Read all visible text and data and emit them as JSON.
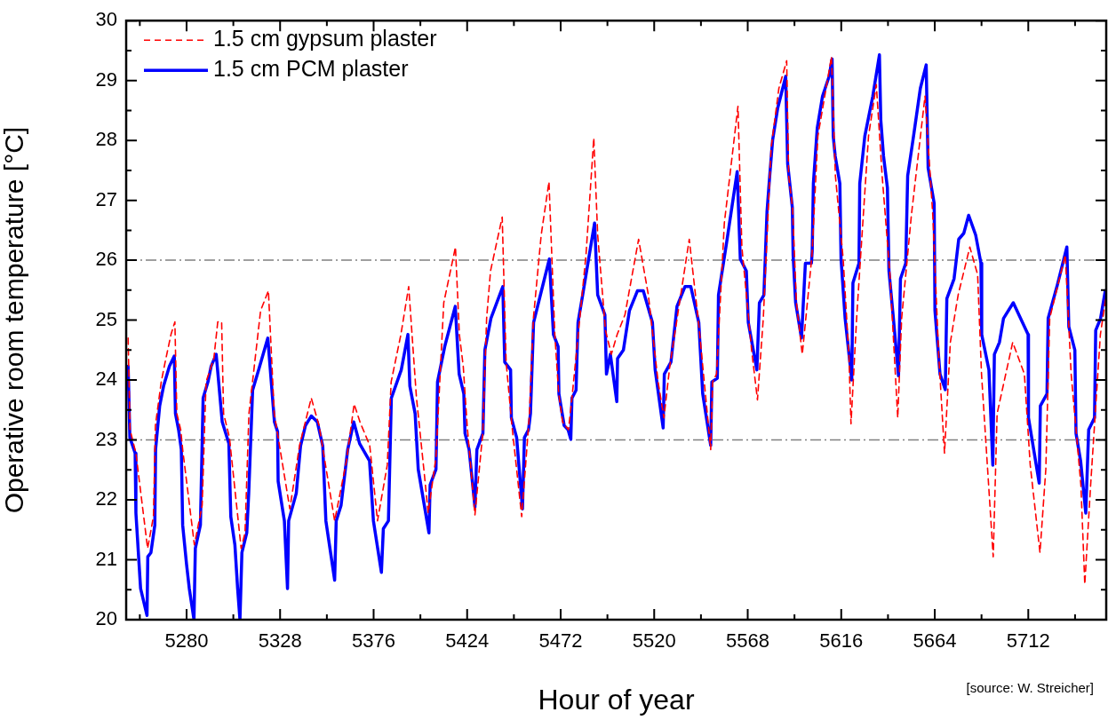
{
  "chart_data": {
    "type": "line",
    "xlabel": "Hour of year",
    "ylabel": "Operative room temperature [°C]",
    "xlim": [
      5249,
      5752
    ],
    "ylim": [
      20,
      30
    ],
    "xticks": [
      {
        "value": 5256,
        "label": null
      },
      5280,
      {
        "value": 5304,
        "label": null
      },
      5328,
      {
        "value": 5352,
        "label": null
      },
      5376,
      {
        "value": 5400,
        "label": null
      },
      5424,
      {
        "value": 5448,
        "label": null
      },
      5472,
      {
        "value": 5496,
        "label": null
      },
      5520,
      {
        "value": 5544,
        "label": null
      },
      5568,
      {
        "value": 5592,
        "label": null
      },
      5616,
      {
        "value": 5640,
        "label": null
      },
      5664,
      {
        "value": 5688,
        "label": null
      },
      5712,
      {
        "value": 5736,
        "label": null
      }
    ],
    "yticks": [
      20,
      {
        "value": 20.5,
        "label": null
      },
      21,
      {
        "value": 21.5,
        "label": null
      },
      22,
      {
        "value": 22.5,
        "label": null
      },
      23,
      {
        "value": 23.5,
        "label": null
      },
      24,
      {
        "value": 24.5,
        "label": null
      },
      25,
      {
        "value": 25.5,
        "label": null
      },
      26,
      {
        "value": 26.5,
        "label": null
      },
      27,
      {
        "value": 27.5,
        "label": null
      },
      28,
      {
        "value": 28.5,
        "label": null
      },
      29,
      {
        "value": 29.5,
        "label": null
      },
      30
    ],
    "grid": false,
    "legend": "top left",
    "marker": "none",
    "ref_lines": [
      {
        "axis": "y",
        "value": 26,
        "color": "#808080",
        "line_style": "dashed"
      },
      {
        "axis": "y",
        "value": 23,
        "color": "#808080",
        "line_style": "dashed"
      }
    ],
    "annotations": [
      "[source: W. Streicher]"
    ],
    "series": [
      {
        "name": "1.5 cm gypsum plaster",
        "color": "#ff0000",
        "line_style": "dashed",
        "x": [
          5250,
          5251,
          5254,
          5260,
          5263,
          5264,
          5267,
          5269,
          5272,
          5274,
          5275,
          5277,
          5278,
          5284,
          5288,
          5290,
          5294,
          5296,
          5298,
          5299,
          5302,
          5308,
          5310,
          5312,
          5318,
          5322,
          5325,
          5333,
          5338,
          5344,
          5348,
          5356,
          5362,
          5366,
          5369,
          5374,
          5378,
          5383,
          5385,
          5390,
          5394,
          5398,
          5402,
          5404,
          5408,
          5412,
          5418,
          5420,
          5422,
          5424,
          5428,
          5432,
          5434,
          5436,
          5442,
          5444,
          5447,
          5452,
          5456,
          5458,
          5462,
          5466,
          5469,
          5471,
          5473,
          5476,
          5478,
          5481,
          5485,
          5489,
          5491,
          5495,
          5498,
          5501,
          5505,
          5512,
          5517,
          5522,
          5525,
          5528,
          5538,
          5543,
          5549,
          5550,
          5552,
          5556,
          5563,
          5565,
          5570,
          5573,
          5576,
          5580,
          5584,
          5588,
          5589,
          5591,
          5593,
          5596,
          5599,
          5601,
          5604,
          5611,
          5613,
          5617,
          5620,
          5621,
          5624,
          5626,
          5630,
          5634,
          5637,
          5641,
          5645,
          5647,
          5652,
          5659,
          5663,
          5666,
          5669,
          5672,
          5676,
          5682,
          5686,
          5688,
          5694,
          5696,
          5704,
          5710,
          5713,
          5718,
          5721,
          5723,
          5731,
          5734,
          5739,
          5741,
          5744,
          5749,
          5752
        ],
        "values": [
          24.7,
          23.17,
          22.78,
          21.19,
          21.72,
          23.24,
          23.97,
          24.3,
          24.76,
          24.97,
          23.44,
          23.17,
          22.84,
          21.25,
          21.91,
          23.97,
          24.36,
          24.97,
          24.97,
          23.44,
          23.04,
          21.19,
          21.45,
          23.44,
          25.16,
          25.49,
          23.44,
          21.85,
          22.91,
          23.7,
          23.24,
          21.65,
          22.64,
          23.6,
          23.3,
          22.91,
          21.65,
          22.58,
          23.97,
          24.76,
          25.56,
          23.7,
          22.44,
          21.78,
          22.71,
          25.29,
          26.22,
          24.76,
          24.23,
          23.24,
          21.75,
          23.11,
          25.03,
          25.82,
          26.72,
          24.3,
          23.24,
          21.72,
          23.44,
          25.03,
          26.42,
          27.31,
          24.76,
          23.77,
          23.3,
          23.17,
          23.77,
          24.76,
          26.09,
          28.04,
          26.42,
          24.83,
          24.43,
          24.76,
          25.09,
          26.35,
          25.42,
          23.97,
          23.37,
          24.23,
          26.35,
          24.89,
          22.84,
          23.97,
          24.1,
          26.62,
          28.57,
          26.22,
          24.5,
          23.67,
          25.03,
          27.87,
          28.87,
          29.33,
          27.41,
          26.88,
          25.29,
          24.43,
          25.42,
          26.09,
          28.07,
          29.4,
          27.41,
          26.02,
          24.36,
          23.27,
          25.09,
          26.09,
          28.07,
          28.93,
          27.41,
          25.76,
          23.37,
          25.03,
          26.75,
          28.74,
          26.75,
          24.43,
          22.78,
          24.63,
          25.42,
          26.22,
          25.76,
          24.1,
          21.05,
          23.44,
          24.63,
          24.1,
          22.58,
          21.12,
          22.51,
          25.03,
          26.09,
          24.1,
          22.25,
          20.59,
          22.25,
          24.76,
          25.42
        ]
      },
      {
        "name": "1.5 cm PCM plaster",
        "color": "#0000ff",
        "line_style": "solid",
        "x": [
          5250,
          5250.9,
          5253.6,
          5254,
          5256.4,
          5259.7,
          5260.1,
          5261.7,
          5263.7,
          5264.1,
          5266.2,
          5268.2,
          5271.2,
          5273.7,
          5274.3,
          5275.9,
          5277.3,
          5278,
          5280,
          5281.4,
          5283.8,
          5284.5,
          5287.1,
          5288.5,
          5291,
          5292.6,
          5295.2,
          5298.3,
          5301.7,
          5302.7,
          5304.8,
          5306.2,
          5307.4,
          5308.4,
          5310.9,
          5311.9,
          5313.9,
          5317,
          5321.7,
          5325.1,
          5326.7,
          5327,
          5330.2,
          5331.8,
          5332.4,
          5336.3,
          5338.5,
          5341,
          5344,
          5347.1,
          5349.9,
          5351.5,
          5356,
          5356.8,
          5359.3,
          5362.7,
          5365.8,
          5368.8,
          5373.9,
          5375.9,
          5380,
          5381,
          5383.6,
          5385.1,
          5390.2,
          5393.6,
          5394.6,
          5397.3,
          5398.9,
          5404.4,
          5405,
          5408,
          5408.8,
          5412.5,
          5417.9,
          5419.9,
          5422.3,
          5422.9,
          5425,
          5428,
          5429,
          5432.1,
          5433.1,
          5436.2,
          5442.3,
          5443.3,
          5446.3,
          5446.7,
          5449.4,
          5452.4,
          5453.4,
          5455.5,
          5456.5,
          5458.1,
          5461.6,
          5466.2,
          5468.3,
          5470.7,
          5471.1,
          5473.8,
          5475.8,
          5477.2,
          5477.8,
          5479.9,
          5480.9,
          5483.3,
          5489.4,
          5491,
          5494.7,
          5495.5,
          5497.5,
          5500.8,
          5501.2,
          5504.2,
          5507.3,
          5511.4,
          5514.4,
          5519.1,
          5520.5,
          5524.6,
          5525.2,
          5528.6,
          5531.7,
          5535.8,
          5538.8,
          5542.9,
          5544.9,
          5549,
          5549.6,
          5552.4,
          5553,
          5557.1,
          5562.6,
          5564.2,
          5567.3,
          5568.3,
          5572.7,
          5574,
          5576.3,
          5577.9,
          5579.3,
          5580.8,
          5583.4,
          5587.5,
          5588.5,
          5590.9,
          5591.3,
          5592.6,
          5595.6,
          5597.6,
          5600.7,
          5601.1,
          5601.7,
          5603.7,
          5606.4,
          5609.8,
          5611.3,
          5611.9,
          5612.9,
          5615.3,
          5615.9,
          5618,
          5621.4,
          5622,
          5625.1,
          5625.5,
          5628.1,
          5632.2,
          5635.6,
          5636.3,
          5637.7,
          5639.7,
          5640.5,
          5642.6,
          5645.4,
          5646.4,
          5649.1,
          5650.1,
          5653.1,
          5656.6,
          5659.6,
          5660.6,
          5663.7,
          5664.1,
          5666.7,
          5669.4,
          5670.2,
          5673.9,
          5676.3,
          5678.9,
          5681.4,
          5685,
          5687.7,
          5688.1,
          5691.8,
          5693.8,
          5694.6,
          5697.2,
          5699.3,
          5704.3,
          5711.9,
          5712.1,
          5717.6,
          5718.2,
          5721.6,
          5722.2,
          5726.7,
          5731.8,
          5732.8,
          5735.9,
          5736.5,
          5738.9,
          5741.5,
          5743,
          5746,
          5746.6,
          5749.1,
          5751.5
        ],
        "values": [
          24.23,
          23.04,
          22.78,
          21.78,
          20.52,
          20.07,
          21.05,
          21.12,
          21.58,
          22.84,
          23.57,
          23.9,
          24.23,
          24.4,
          23.44,
          23.17,
          22.84,
          21.58,
          20.92,
          20.52,
          20.0,
          21.19,
          21.58,
          23.7,
          23.97,
          24.23,
          24.43,
          23.3,
          22.94,
          21.72,
          21.25,
          20.52,
          20.0,
          21.12,
          21.45,
          22.11,
          23.83,
          24.17,
          24.7,
          23.3,
          23.14,
          22.31,
          21.65,
          20.52,
          21.65,
          22.11,
          22.9,
          23.24,
          23.4,
          23.3,
          22.9,
          21.65,
          20.66,
          21.65,
          21.91,
          22.84,
          23.3,
          22.94,
          22.65,
          21.65,
          20.79,
          21.52,
          21.65,
          23.7,
          24.17,
          24.76,
          23.9,
          23.44,
          22.51,
          21.45,
          22.25,
          22.51,
          23.97,
          24.56,
          25.23,
          24.1,
          23.77,
          23.11,
          22.84,
          21.88,
          22.84,
          23.11,
          24.5,
          25.03,
          25.56,
          24.3,
          24.17,
          23.37,
          23.04,
          21.85,
          23.04,
          23.17,
          23.44,
          24.96,
          25.42,
          26.02,
          24.76,
          24.56,
          23.77,
          23.24,
          23.17,
          23.01,
          23.7,
          23.83,
          24.96,
          25.42,
          26.62,
          25.42,
          25.09,
          24.1,
          24.43,
          23.64,
          24.36,
          24.5,
          25.16,
          25.49,
          25.49,
          24.96,
          24.17,
          23.2,
          24.1,
          24.3,
          25.23,
          25.56,
          25.56,
          24.96,
          23.77,
          22.91,
          23.97,
          24.03,
          25.42,
          26.28,
          27.48,
          26.02,
          25.82,
          24.96,
          24.17,
          25.29,
          25.42,
          26.81,
          27.41,
          28.01,
          28.54,
          29.07,
          27.61,
          26.88,
          26.09,
          25.29,
          24.7,
          25.95,
          25.95,
          26.15,
          27.28,
          28.21,
          28.74,
          29.07,
          29.36,
          28.07,
          27.74,
          27.28,
          26.02,
          25.03,
          24.0,
          25.62,
          25.95,
          27.28,
          28.07,
          28.74,
          29.43,
          28.34,
          27.74,
          27.21,
          25.82,
          25.09,
          24.07,
          25.69,
          25.95,
          27.41,
          28.07,
          28.87,
          29.26,
          27.54,
          26.95,
          25.16,
          24.1,
          23.84,
          25.36,
          25.69,
          26.35,
          26.45,
          26.75,
          26.42,
          25.95,
          24.76,
          24.17,
          22.58,
          24.43,
          24.63,
          25.03,
          25.29,
          24.76,
          23.37,
          22.28,
          23.57,
          23.77,
          25.03,
          25.56,
          26.22,
          24.89,
          24.5,
          23.11,
          22.64,
          21.78,
          23.17,
          23.37,
          24.83,
          25.03,
          25.49
        ]
      }
    ]
  }
}
